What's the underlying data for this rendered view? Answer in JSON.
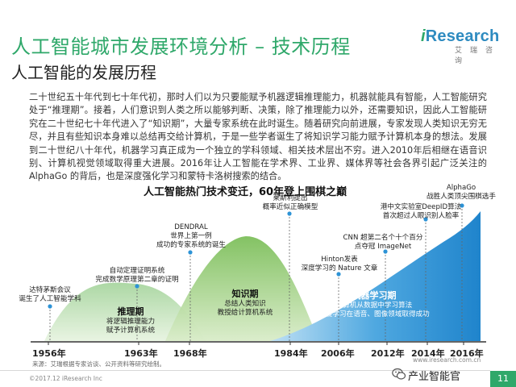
{
  "header": {
    "title": "人工智能城市发展环境分析 – 技术历程",
    "subtitle": "人工智能的发展历程"
  },
  "logo": {
    "main_i": "i",
    "main_rest": "Research",
    "sub": "艾瑞咨询"
  },
  "body": {
    "paragraph": "二十世纪五十年代到七十年代初，那时人们以为只要能赋予机器逻辑推理能力，机器就能具有智能，人工智能研究处于“推理期”。接着，人们意识到人类之所以能够判断、决策，除了推理能力以外，还需要知识，因此人工智能研究在二十世纪七十年代进入了“知识期”，大量专家系统在此时诞生。随着研究向前进展，专家发现人类知识无穷无尽，并且有些知识本身难以总结再交给计算机，于是一些学者诞生了将知识学习能力赋予计算机本身的想法。发展到二十世纪八十年代，机器学习真正成为一个独立的学科领域、相关技术层出不穷。进入2010年后相继在语音识别、计算机视觉领域取得重大进展。2016年让人工智能在学术界、工业界、媒体界等社会各界引起广泛关注的 AlphaGo 的背后，也是深度强化学习和蒙特卡洛树搜索的结合。"
  },
  "chart_title": "人工智能热门技术变迁，60年登上围棋之巅",
  "timeline": {
    "years": [
      "1956年",
      "1963年",
      "1968年",
      "1984年",
      "2006年",
      "2012年",
      "2014年",
      "2016年"
    ],
    "phases": {
      "reasoning": {
        "name": "推理期",
        "desc": [
          "将逻辑推理能力",
          "赋予计算机系统"
        ]
      },
      "knowledge": {
        "name": "知识期",
        "desc": [
          "总结人类知识",
          "教授给计算机系统"
        ]
      },
      "learning": {
        "name": "机器学习期",
        "desc": [
          "计算机从数据中学习算法",
          "深度学习在语音、图像领域取得成功"
        ]
      }
    },
    "events": {
      "dartmouth": [
        "达特茅斯会议",
        "诞生了人工智能学科"
      ],
      "theorem": [
        "自动定理证明系统",
        "完成数学原理第二章的证明"
      ],
      "dendral": [
        "DENDRAL",
        "世界上第一例",
        "成功的专家系统的诞生"
      ],
      "pearl": [
        "莱斯利提出",
        "概率近似正确模型"
      ],
      "hinton": [
        "Hinton发表",
        "深度学习的 Nature 文章"
      ],
      "cnn": [
        "CNN 超第二名个十个百分",
        "点夺冠 ImageNet"
      ],
      "deepid": [
        "港中文实验室DeepID算法",
        "首次超过人眼识别人脸率"
      ],
      "alphago": [
        "AlphaGo",
        "战胜人类顶尖围棋选手"
      ]
    }
  },
  "note": "来源：艾瑞根据专家访谈、公开资料等研究绘制。",
  "footer": {
    "copyright": "©2017.12 iResearch Inc",
    "url": "www.iresearch.com.cn",
    "wechat": "产业智能官",
    "page": "11"
  },
  "colors": {
    "brand_green": "#2fa86a",
    "brand_blue": "#2e8bc0",
    "reasoning_fill": "#7fc38a",
    "knowledge_fill": "#86c46b",
    "learning_fill": "#2d93d6"
  }
}
